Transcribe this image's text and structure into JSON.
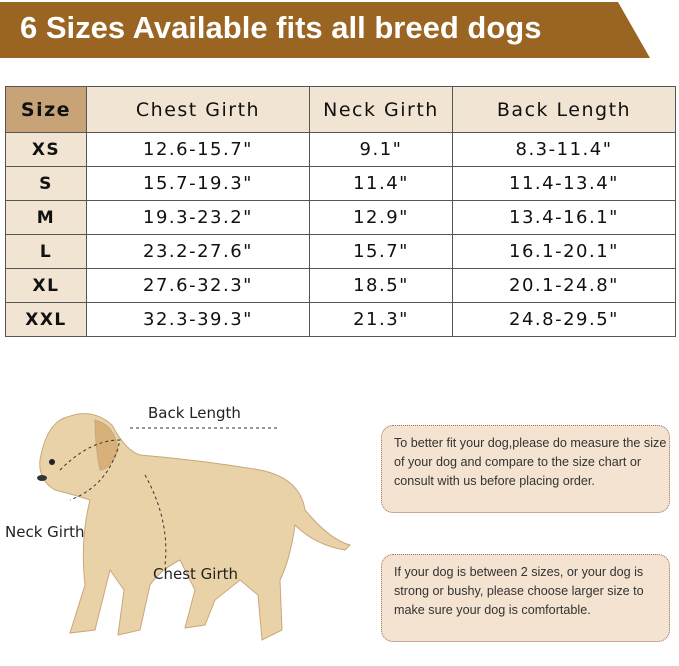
{
  "title": "6 Sizes Available fits all breed dogs",
  "table": {
    "headers": [
      "Size",
      "Chest Girth",
      "Neck Girth",
      "Back Length"
    ],
    "rows": [
      [
        "XS",
        "12.6-15.7\"",
        "9.1\"",
        "8.3-11.4\""
      ],
      [
        "S",
        "15.7-19.3\"",
        "11.4\"",
        "11.4-13.4\""
      ],
      [
        "M",
        "19.3-23.2\"",
        "12.9\"",
        "13.4-16.1\""
      ],
      [
        "L",
        "23.2-27.6\"",
        "15.7\"",
        "16.1-20.1\""
      ],
      [
        "XL",
        "27.6-32.3\"",
        "18.5\"",
        "20.1-24.8\""
      ],
      [
        "XXL",
        "32.3-39.3\"",
        "21.3\"",
        "24.8-29.5\""
      ]
    ]
  },
  "diagram": {
    "back_length": "Back Length",
    "neck_girth": "Neck Girth",
    "chest_girth": "Chest Girth"
  },
  "notes": [
    "To better fit your dog,please do measure the size of your dog and compare to the size chart or consult with us before placing order.",
    "If your dog is between 2 sizes, or your dog is strong or bushy, please choose larger size to make sure your dog is comfortable."
  ],
  "colors": {
    "banner": "#9a6522",
    "header_size": "#c9a378",
    "header_bg": "#f1e4d3",
    "note_bg": "#f3e3d0"
  }
}
